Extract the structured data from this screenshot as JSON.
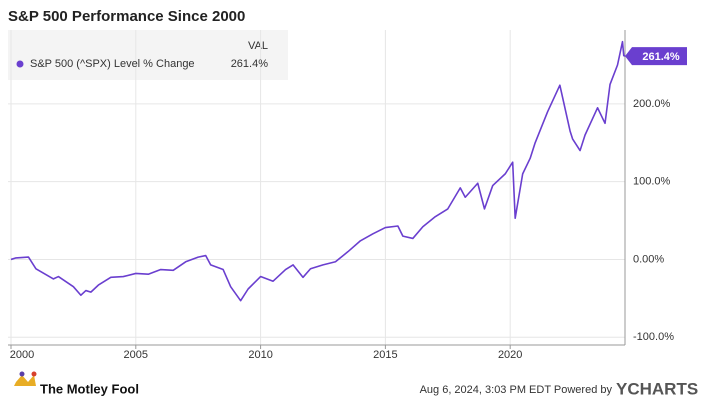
{
  "chart_data": {
    "type": "line",
    "title": "S&P 500 Performance Since 2000",
    "legend_header": "VAL",
    "logo_text": "The Motley Fool",
    "footer_note": "Aug 6, 2024, 3:03 PM EDT Powered by",
    "source": "YCHARTS",
    "grid": true,
    "legend_position": "upper left",
    "xlim": [
      1999.88,
      2024.6
    ],
    "xticks": [
      2000,
      2005,
      2010,
      2015,
      2020
    ],
    "ylim": [
      -110,
      295
    ],
    "yticks": [
      {
        "value": -100,
        "label": "-100.0%"
      },
      {
        "value": 0,
        "label": "0.00%"
      },
      {
        "value": 100,
        "label": "100.0%"
      },
      {
        "value": 200,
        "label": "200.0%"
      }
    ],
    "x": [
      2000.0,
      2000.2,
      2000.7,
      2001.0,
      2001.7,
      2001.9,
      2002.5,
      2002.8,
      2003.0,
      2003.2,
      2003.5,
      2004.0,
      2004.5,
      2005.0,
      2005.5,
      2006.0,
      2006.5,
      2007.0,
      2007.5,
      2007.8,
      2008.0,
      2008.5,
      2008.8,
      2009.2,
      2009.5,
      2010.0,
      2010.5,
      2011.0,
      2011.3,
      2011.7,
      2012.0,
      2012.5,
      2013.0,
      2013.5,
      2014.0,
      2014.5,
      2015.0,
      2015.5,
      2015.7,
      2016.1,
      2016.5,
      2017.0,
      2017.5,
      2018.0,
      2018.2,
      2018.7,
      2018.97,
      2019.3,
      2019.8,
      2020.1,
      2020.2,
      2020.5,
      2020.8,
      2021.0,
      2021.5,
      2021.99,
      2022.4,
      2022.5,
      2022.8,
      2023.0,
      2023.5,
      2023.8,
      2024.0,
      2024.3,
      2024.5,
      2024.55,
      2024.6
    ],
    "series": [
      {
        "name": "S&P 500 (^SPX) Level % Change",
        "color": "#6a3fcf",
        "values": [
          0,
          2,
          3,
          -12,
          -25,
          -22,
          -35,
          -46,
          -40,
          -42,
          -33,
          -23,
          -22,
          -18,
          -19,
          -13,
          -14,
          -3,
          3,
          5,
          -7,
          -13,
          -35,
          -53,
          -38,
          -22,
          -28,
          -13,
          -7,
          -23,
          -12,
          -7,
          -3,
          10,
          24,
          33,
          41,
          43,
          30,
          27,
          42,
          55,
          65,
          92,
          80,
          98,
          65,
          95,
          110,
          125,
          53,
          110,
          130,
          150,
          190,
          224,
          165,
          155,
          140,
          160,
          195,
          175,
          225,
          250,
          280,
          262,
          261.4
        ],
        "value_labels": [
          null,
          null,
          null,
          null,
          null,
          null,
          null,
          null,
          null,
          null,
          null,
          null,
          null,
          null,
          null,
          null,
          null,
          null,
          null,
          null,
          null,
          null,
          null,
          null,
          null,
          null,
          null,
          null,
          null,
          null,
          null,
          null,
          null,
          null,
          null,
          null,
          null,
          null,
          null,
          null,
          null,
          null,
          null,
          null,
          null,
          null,
          null,
          null,
          null,
          null,
          null,
          null,
          null,
          null,
          null,
          null,
          null,
          null,
          null,
          null,
          null,
          null,
          null,
          null,
          null,
          null,
          "261.4%"
        ]
      }
    ]
  }
}
